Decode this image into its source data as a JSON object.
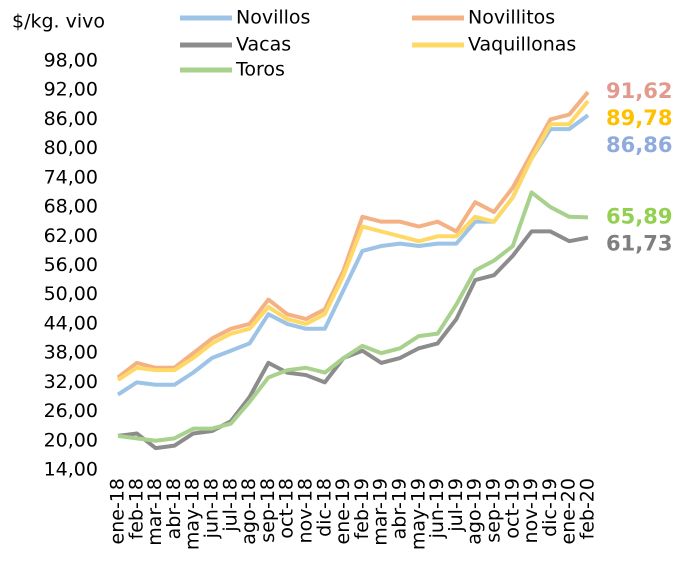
{
  "chart_data": {
    "type": "line",
    "ylabel": "$/kg. vivo",
    "categories": [
      "ene-18",
      "feb-18",
      "mar-18",
      "abr-18",
      "may-18",
      "jun-18",
      "jul-18",
      "ago-18",
      "sep-18",
      "oct-18",
      "nov-18",
      "dic-18",
      "ene-19",
      "feb-19",
      "mar-19",
      "abr-19",
      "may-19",
      "jun-19",
      "jul-19",
      "ago-19",
      "sep-19",
      "oct-19",
      "nov-19",
      "dic-19",
      "ene-20",
      "feb-20"
    ],
    "ylim": [
      14,
      98
    ],
    "yticks": [
      {
        "value": 14,
        "label": "14,00"
      },
      {
        "value": 20,
        "label": "20,00"
      },
      {
        "value": 26,
        "label": "26,00"
      },
      {
        "value": 32,
        "label": "32,00"
      },
      {
        "value": 38,
        "label": "38,00"
      },
      {
        "value": 44,
        "label": "44,00"
      },
      {
        "value": 50,
        "label": "50,00"
      },
      {
        "value": 56,
        "label": "56,00"
      },
      {
        "value": 62,
        "label": "62,00"
      },
      {
        "value": 68,
        "label": "68,00"
      },
      {
        "value": 74,
        "label": "74,00"
      },
      {
        "value": 80,
        "label": "80,00"
      },
      {
        "value": 86,
        "label": "86,00"
      },
      {
        "value": 92,
        "label": "92,00"
      },
      {
        "value": 98,
        "label": "98,00"
      }
    ],
    "grid": false,
    "series": [
      {
        "name": "Novillos",
        "color": "#9dc3e6",
        "label_color": "#8faadc",
        "values": [
          29.5,
          32,
          31.5,
          31.5,
          34,
          37,
          38.5,
          40,
          46,
          44,
          43,
          43,
          51,
          59,
          60,
          60.5,
          60,
          60.5,
          60.5,
          65,
          65,
          70,
          78,
          84,
          84,
          86.86
        ],
        "value_labels": [
          null,
          null,
          null,
          null,
          null,
          null,
          null,
          null,
          null,
          null,
          null,
          null,
          null,
          null,
          null,
          null,
          null,
          null,
          null,
          null,
          null,
          null,
          null,
          null,
          null,
          "86,86"
        ]
      },
      {
        "name": "Novillitos",
        "color": "#f4b183",
        "label_color": "#e39a8e",
        "values": [
          33,
          36,
          35,
          35,
          38,
          41,
          43,
          44,
          49,
          46,
          45,
          47,
          55,
          66,
          65,
          65,
          64,
          65,
          63,
          69,
          67,
          72,
          79,
          86,
          87,
          91.62
        ],
        "value_labels": [
          null,
          null,
          null,
          null,
          null,
          null,
          null,
          null,
          null,
          null,
          null,
          null,
          null,
          null,
          null,
          null,
          null,
          null,
          null,
          null,
          null,
          null,
          null,
          null,
          null,
          "91,62"
        ]
      },
      {
        "name": "Vacas",
        "color": "#8c8c8c",
        "label_color": "#7f7f7f",
        "values": [
          21,
          21.5,
          18.5,
          19,
          21.5,
          22,
          24,
          29,
          36,
          34,
          33.5,
          32,
          37,
          38.5,
          36,
          37,
          39,
          40,
          45,
          53,
          54,
          58,
          63,
          63,
          61,
          61.73
        ],
        "value_labels": [
          null,
          null,
          null,
          null,
          null,
          null,
          null,
          null,
          null,
          null,
          null,
          null,
          null,
          null,
          null,
          null,
          null,
          null,
          null,
          null,
          null,
          null,
          null,
          null,
          null,
          "61,73"
        ]
      },
      {
        "name": "Vaquillonas",
        "color": "#ffd966",
        "label_color": "#ffc000",
        "values": [
          32.5,
          35,
          34.5,
          34.5,
          37,
          40,
          42,
          43,
          47.5,
          45,
          44,
          46,
          54,
          64,
          63,
          62,
          61,
          62,
          62,
          66,
          65,
          70,
          78,
          85,
          85,
          89.78
        ],
        "value_labels": [
          null,
          null,
          null,
          null,
          null,
          null,
          null,
          null,
          null,
          null,
          null,
          null,
          null,
          null,
          null,
          null,
          null,
          null,
          null,
          null,
          null,
          null,
          null,
          null,
          null,
          "89,78"
        ]
      },
      {
        "name": "Toros",
        "color": "#a9d18e",
        "label_color": "#92d050",
        "values": [
          21,
          20.5,
          20,
          20.5,
          22.5,
          22.5,
          23.5,
          28,
          33,
          34.5,
          35,
          34,
          37,
          39.5,
          38,
          39,
          41.5,
          42,
          48,
          55,
          57,
          60,
          71,
          68,
          66,
          65.89
        ],
        "value_labels": [
          null,
          null,
          null,
          null,
          null,
          null,
          null,
          null,
          null,
          null,
          null,
          null,
          null,
          null,
          null,
          null,
          null,
          null,
          null,
          null,
          null,
          null,
          null,
          null,
          null,
          "65,89"
        ]
      }
    ]
  }
}
